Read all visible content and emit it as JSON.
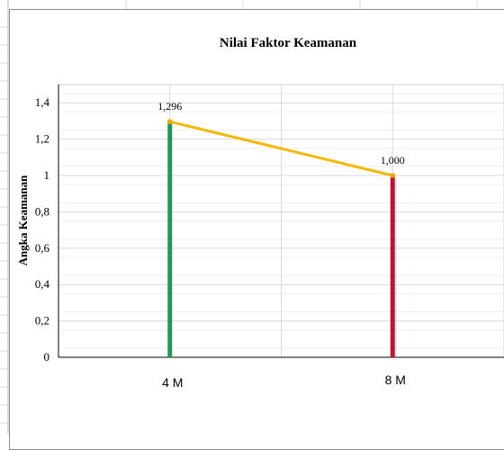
{
  "colors": {
    "first_bar": "#1e9a57",
    "second_bar": "#c8102e",
    "line": "#f5b800",
    "marker": "#e8a800",
    "gridline_major": "#d9d9d9",
    "gridline_minor": "#eeeeee",
    "sheet_grid": "#dadada"
  },
  "chart_data": {
    "type": "bar",
    "title": "Nilai Faktor Keamanan",
    "ylabel": "Angka Keamanan",
    "xlabel": "",
    "categories": [
      "4 M",
      "8 M"
    ],
    "values": [
      1.296,
      1.0
    ],
    "data_labels": [
      "1,296",
      "1,000"
    ],
    "ylim": [
      0,
      1.5
    ],
    "yticks": [
      0,
      0.2,
      0.4,
      0.6,
      0.8,
      1,
      1.2,
      1.4
    ],
    "ytick_labels": [
      "0",
      "0,2",
      "0,4",
      "0,6",
      "0,8",
      "1",
      "1,2",
      "1,4"
    ],
    "overlay_line": true,
    "grid": true,
    "legend": "none"
  }
}
